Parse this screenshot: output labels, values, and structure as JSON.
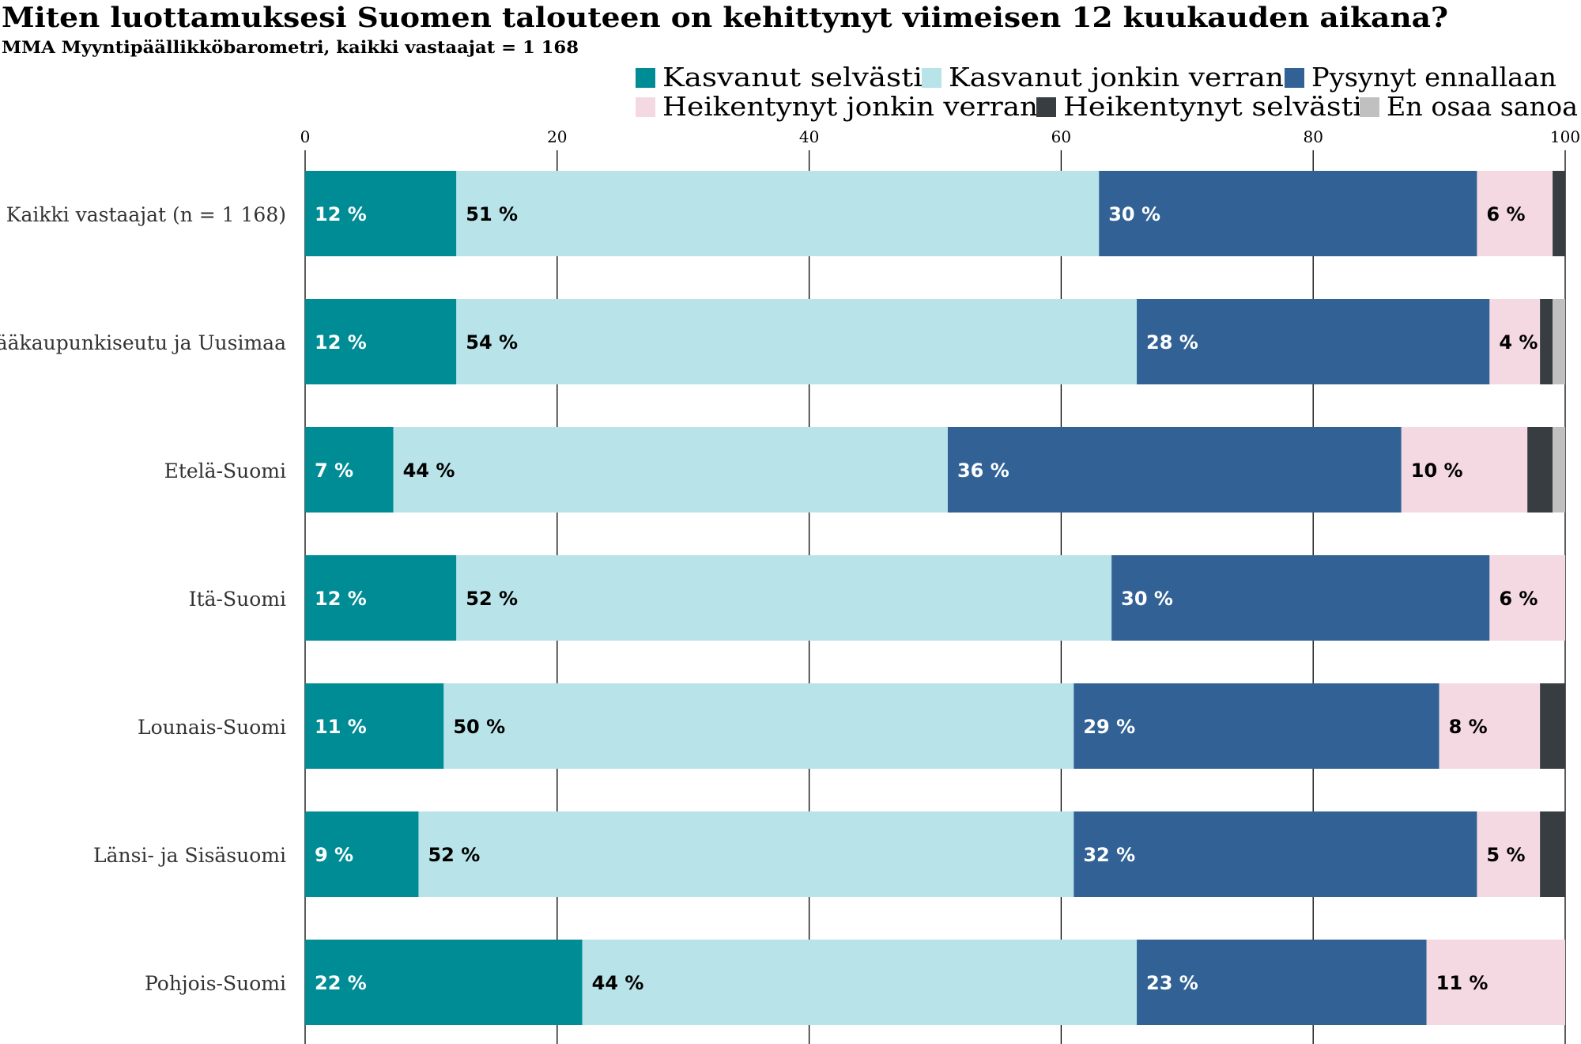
{
  "chart_data": {
    "type": "bar",
    "orientation": "horizontal",
    "stacked": true,
    "title": "Miten luottamuksesi Suomen talouteen on kehittynyt viimeisen 12 kuukauden aikana?",
    "subtitle": "MMA Myyntipäällikköbarometri, kaikki vastaajat = 1 168",
    "xlim": [
      0,
      100
    ],
    "x_ticks": [
      0,
      20,
      40,
      60,
      80,
      100
    ],
    "grid": true,
    "legend_position": "top-right",
    "label_suffix": " %",
    "categories": [
      "Kaikki vastaajat (n = 1 168)",
      "Pääkaupunkiseutu ja Uusimaa",
      "Etelä-Suomi",
      "Itä-Suomi",
      "Lounais-Suomi",
      "Länsi- ja Sisäsuomi",
      "Pohjois-Suomi"
    ],
    "series": [
      {
        "name": "Kasvanut selvästi",
        "color": "#008C95",
        "label_color": "#ffffff",
        "values": [
          12,
          12,
          7,
          12,
          11,
          9,
          22
        ]
      },
      {
        "name": "Kasvanut jonkin verran",
        "color": "#B8E3E9",
        "label_color": "#000000",
        "values": [
          51,
          54,
          44,
          52,
          50,
          52,
          44
        ]
      },
      {
        "name": "Pysynyt ennallaan",
        "color": "#326295",
        "label_color": "#ffffff",
        "values": [
          30,
          28,
          36,
          30,
          29,
          32,
          23
        ]
      },
      {
        "name": "Heikentynyt jonkin verran",
        "color": "#F4D9E3",
        "label_color": "#000000",
        "values": [
          6,
          4,
          10,
          6,
          8,
          5,
          11
        ]
      },
      {
        "name": "Heikentynyt selvästi",
        "color": "#383D42",
        "label_color": "#ffffff",
        "values": [
          1,
          1,
          2,
          0,
          2,
          2,
          0
        ]
      },
      {
        "name": "En osaa sanoa",
        "color": "#C0C0C0",
        "label_color": "#000000",
        "values": [
          0,
          1,
          1,
          0,
          0,
          0,
          0
        ]
      }
    ]
  }
}
